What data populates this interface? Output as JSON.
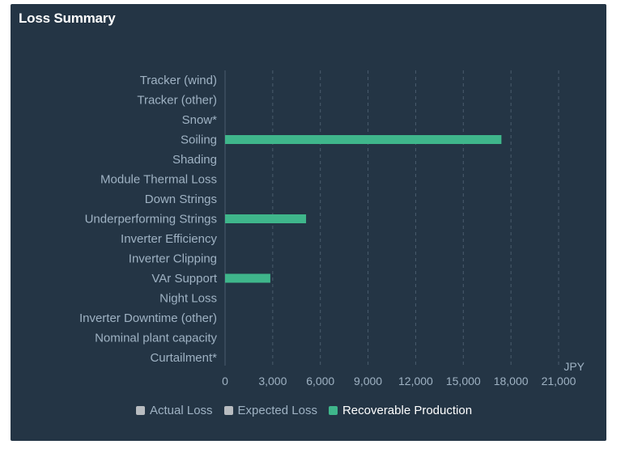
{
  "panel": {
    "title": "Loss Summary"
  },
  "colors": {
    "background": "#243545",
    "recoverable": "#3fb68b",
    "inactive_legend": "#b8bcc0",
    "label_text": "#9fb2c3",
    "grid": "#4a5c6d"
  },
  "legend": [
    {
      "label": "Actual Loss",
      "color": "#b8bcc0",
      "active": false
    },
    {
      "label": "Expected Loss",
      "color": "#b8bcc0",
      "active": false
    },
    {
      "label": "Recoverable Production",
      "color": "#3fb68b",
      "active": true
    }
  ],
  "chart_data": {
    "type": "bar",
    "orientation": "horizontal",
    "title": "",
    "xlabel": "JPY",
    "ylabel": "",
    "xlim": [
      0,
      21000
    ],
    "xticks": [
      "0",
      "3,000",
      "6,000",
      "9,000",
      "12,000",
      "15,000",
      "18,000",
      "21,000"
    ],
    "grid": true,
    "legend_position": "bottom",
    "categories": [
      "Tracker (wind)",
      "Tracker (other)",
      "Snow*",
      "Soiling",
      "Shading",
      "Module Thermal Loss",
      "Down Strings",
      "Underperforming Strings",
      "Inverter Efficiency",
      "Inverter Clipping",
      "VAr Support",
      "Night Loss",
      "Inverter Downtime (other)",
      "Nominal plant capacity",
      "Curtailment*"
    ],
    "series": [
      {
        "name": "Actual Loss",
        "values": [
          0,
          0,
          0,
          0,
          0,
          0,
          0,
          0,
          0,
          0,
          0,
          0,
          0,
          0,
          0
        ]
      },
      {
        "name": "Expected Loss",
        "values": [
          0,
          0,
          0,
          0,
          0,
          0,
          0,
          0,
          0,
          0,
          0,
          0,
          0,
          0,
          0
        ]
      },
      {
        "name": "Recoverable Production",
        "values": [
          0,
          0,
          0,
          17400,
          0,
          0,
          0,
          5100,
          0,
          0,
          2850,
          0,
          0,
          0,
          0
        ]
      }
    ]
  }
}
